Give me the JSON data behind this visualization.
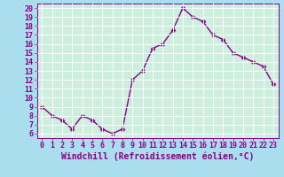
{
  "x": [
    0,
    1,
    2,
    3,
    4,
    5,
    6,
    7,
    8,
    9,
    10,
    11,
    12,
    13,
    14,
    15,
    16,
    17,
    18,
    19,
    20,
    21,
    22,
    23
  ],
  "y": [
    9.0,
    8.0,
    7.5,
    6.5,
    8.0,
    7.5,
    6.5,
    6.0,
    6.5,
    12.0,
    13.0,
    15.5,
    16.0,
    17.5,
    20.0,
    19.0,
    18.5,
    17.0,
    16.5,
    15.0,
    14.5,
    14.0,
    13.5,
    11.5
  ],
  "line_color": "#880088",
  "marker": "D",
  "marker_size": 2.5,
  "xlabel": "Windchill (Refroidissement éolien,°C)",
  "xlim": [
    -0.5,
    23.5
  ],
  "ylim": [
    5.5,
    20.5
  ],
  "yticks": [
    6,
    7,
    8,
    9,
    10,
    11,
    12,
    13,
    14,
    15,
    16,
    17,
    18,
    19,
    20
  ],
  "xticks": [
    0,
    1,
    2,
    3,
    4,
    5,
    6,
    7,
    8,
    9,
    10,
    11,
    12,
    13,
    14,
    15,
    16,
    17,
    18,
    19,
    20,
    21,
    22,
    23
  ],
  "grid_color": "#ffffff",
  "fig_bg_color": "#aaddee",
  "plot_bg_color": "#cceedd",
  "label_color": "#880088",
  "tick_color": "#880088",
  "spine_color": "#880088",
  "xlabel_fontsize": 7.0,
  "tick_fontsize": 6.0,
  "linewidth": 1.0,
  "grid_linewidth": 0.7
}
